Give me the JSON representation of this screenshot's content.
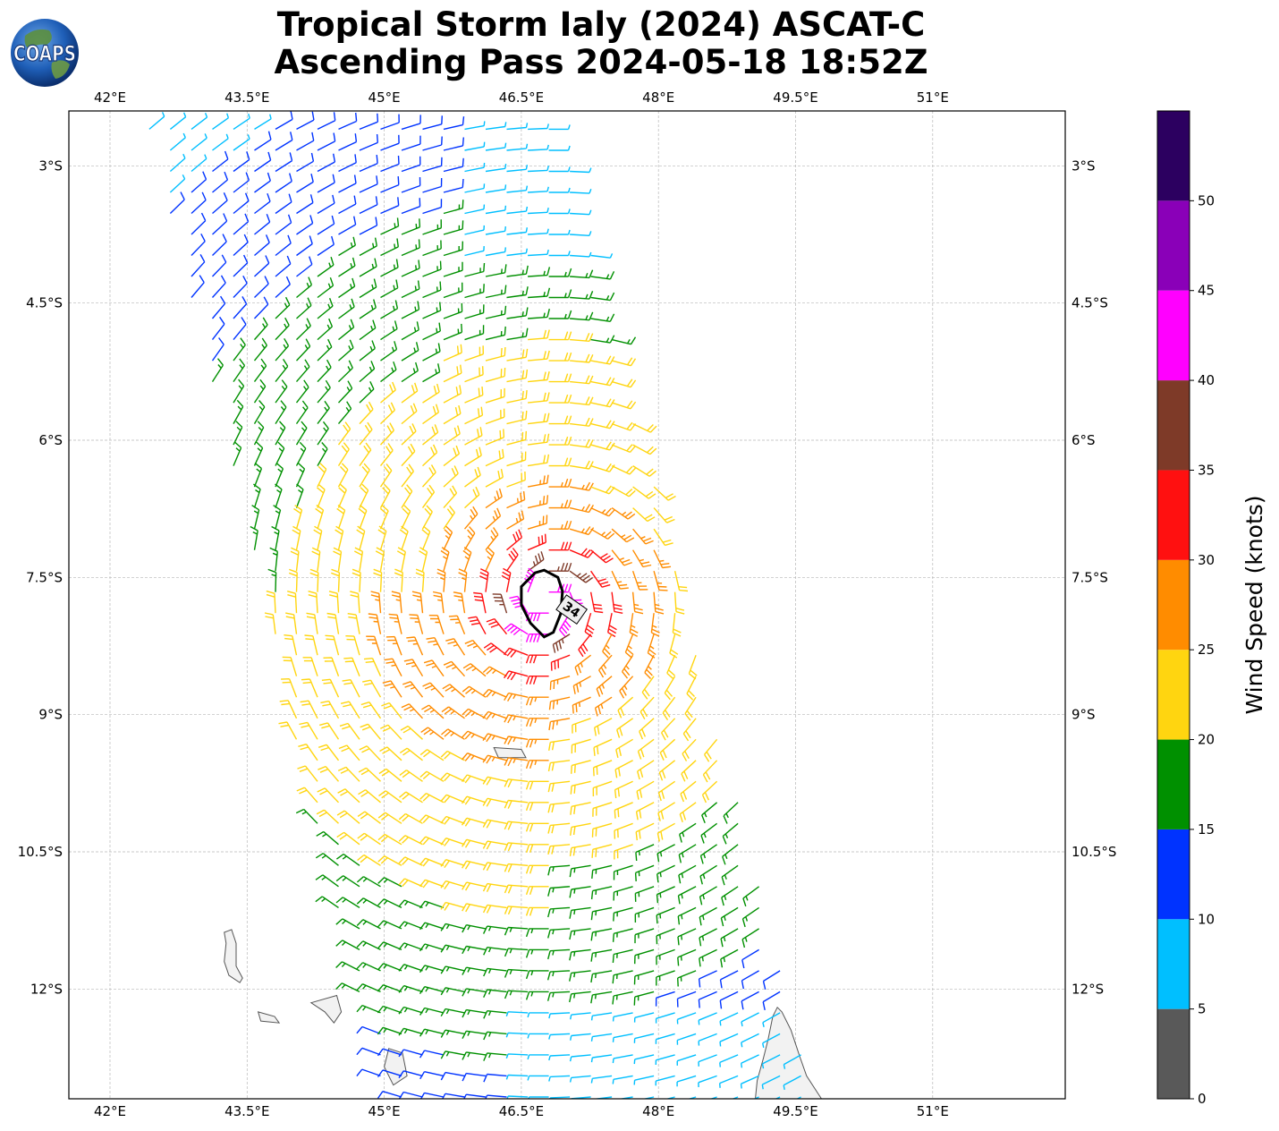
{
  "title": {
    "line1": "Tropical Storm Ialy (2024) ASCAT-C",
    "line2": "Ascending Pass 2024-05-18 18:52Z"
  },
  "logo": {
    "text": "COAPS",
    "icon": "globe-logo-icon"
  },
  "map": {
    "lon_range": [
      41.55,
      52.45
    ],
    "lat_range": [
      -2.4,
      -13.2
    ],
    "lon_ticks": [
      42,
      43.5,
      45,
      46.5,
      48,
      49.5,
      51
    ],
    "lon_tick_labels": [
      "42°E",
      "43.5°E",
      "45°E",
      "46.5°E",
      "48°E",
      "49.5°E",
      "51°E"
    ],
    "lat_ticks": [
      -3,
      -4.5,
      -6,
      -7.5,
      -9,
      -10.5,
      -12
    ],
    "lat_tick_labels": [
      "3°S",
      "4.5°S",
      "6°S",
      "7.5°S",
      "9°S",
      "10.5°S",
      "12°S"
    ],
    "gridlines": true,
    "storm_center": {
      "lon": 46.8,
      "lat": -7.75
    },
    "contour": {
      "label": "34",
      "units": "knots"
    },
    "swath_corners": [
      {
        "lon": 42.4,
        "lat": -2.6
      },
      {
        "lon": 46.9,
        "lat": -2.55
      },
      {
        "lon": 49.4,
        "lat": -11.9
      },
      {
        "lon": 49.1,
        "lat": -13.2
      },
      {
        "lon": 45.0,
        "lat": -13.2
      }
    ],
    "land_regions": [
      "Grande Comore",
      "Moheli",
      "Anjouan",
      "Mayotte",
      "Aldabra",
      "Northern Madagascar"
    ]
  },
  "colorbar": {
    "label": "Wind Speed (knots)",
    "boundaries": [
      0,
      5,
      10,
      15,
      20,
      25,
      30,
      35,
      40,
      45,
      50,
      55
    ],
    "tick_values": [
      0,
      5,
      10,
      15,
      20,
      25,
      30,
      35,
      40,
      45,
      50
    ],
    "tick_labels": [
      "0",
      "5",
      "10",
      "15",
      "20",
      "25",
      "30",
      "35",
      "40",
      "45",
      "50"
    ],
    "colors": [
      "#595959",
      "#00bfff",
      "#0033ff",
      "#009000",
      "#ffd510",
      "#ff8c00",
      "#ff1010",
      "#7e3a28",
      "#ff00ff",
      "#8a00b8",
      "#2c0060"
    ]
  },
  "colors": {
    "land_fill": "#f2f2f2",
    "land_stroke": "#555555",
    "grid": "#b8b8b8",
    "contour": "#000000"
  }
}
